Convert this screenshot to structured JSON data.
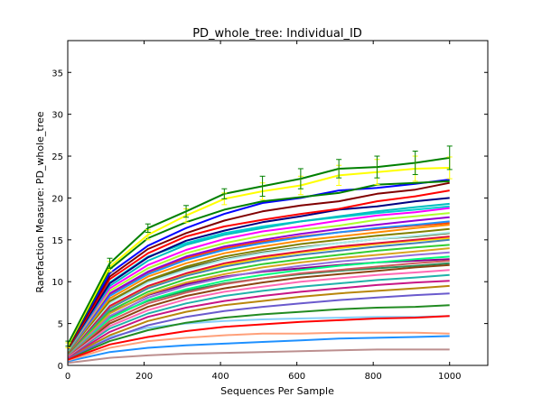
{
  "chart_data": {
    "type": "line",
    "title": "PD_whole_tree: Individual_ID",
    "xlabel": "Sequences Per Sample",
    "ylabel": "Rarefaction Measure: PD_whole_tree",
    "xlim": [
      0,
      1100
    ],
    "ylim": [
      0,
      38.8
    ],
    "xticks": [
      "0",
      "200",
      "400",
      "600",
      "800",
      "1000"
    ],
    "yticks": [
      "0",
      "5",
      "10",
      "15",
      "20",
      "25",
      "30",
      "35"
    ],
    "grid": false,
    "legend": "none",
    "x": [
      1,
      110,
      210,
      310,
      410,
      510,
      610,
      710,
      810,
      910,
      1000
    ],
    "series": [
      {
        "color": "#008000",
        "values": [
          2.6,
          12.2,
          16.4,
          18.4,
          20.5,
          21.4,
          22.3,
          23.5,
          23.7,
          24.2,
          24.8
        ],
        "err": [
          0.3,
          0.6,
          0.5,
          0.7,
          0.6,
          1.2,
          1.2,
          1.1,
          1.3,
          1.4,
          1.4
        ]
      },
      {
        "color": "#ffff00",
        "values": [
          2.4,
          11.8,
          15.6,
          17.9,
          19.9,
          20.8,
          21.5,
          22.7,
          23.1,
          23.5,
          23.6
        ],
        "err": [
          0.3,
          0.6,
          0.6,
          0.8,
          0.7,
          1.0,
          1.1,
          1.2,
          1.5,
          1.5,
          1.3
        ]
      },
      {
        "color": "#008000",
        "values": [
          2.3,
          11.5,
          15.2,
          17.1,
          18.6,
          19.6,
          20.1,
          20.6,
          21.6,
          21.8,
          22.0
        ]
      },
      {
        "color": "#0000ff",
        "values": [
          2.3,
          11.0,
          14.3,
          16.4,
          18.1,
          19.4,
          20.0,
          20.9,
          21.2,
          21.7,
          22.2
        ]
      },
      {
        "color": "#800000",
        "values": [
          2.1,
          10.6,
          13.9,
          15.8,
          17.3,
          18.4,
          19.1,
          19.6,
          20.5,
          21.0,
          21.8
        ]
      },
      {
        "color": "#ff0000",
        "values": [
          2.0,
          10.3,
          13.4,
          15.4,
          16.6,
          17.4,
          18.1,
          18.7,
          19.6,
          20.2,
          20.9
        ]
      },
      {
        "color": "#000080",
        "values": [
          2.0,
          9.8,
          12.9,
          14.9,
          16.1,
          17.1,
          17.8,
          18.6,
          19.0,
          19.6,
          20.0
        ]
      },
      {
        "color": "#00bfbf",
        "values": [
          1.9,
          9.5,
          12.5,
          14.4,
          15.6,
          16.4,
          17.2,
          17.8,
          18.4,
          18.9,
          19.3
        ]
      },
      {
        "color": "#ff00ff",
        "values": [
          1.9,
          9.2,
          12.0,
          13.8,
          15.1,
          16.0,
          16.6,
          17.3,
          17.9,
          18.3,
          18.8
        ]
      },
      {
        "color": "#adff2f",
        "values": [
          1.8,
          8.9,
          11.6,
          13.4,
          14.6,
          15.5,
          16.2,
          16.7,
          17.4,
          17.8,
          18.2
        ]
      },
      {
        "color": "#9400d3",
        "values": [
          1.8,
          8.6,
          11.2,
          13.0,
          14.2,
          15.0,
          15.7,
          16.3,
          16.8,
          17.3,
          17.7
        ]
      },
      {
        "color": "#1e90ff",
        "values": [
          1.7,
          8.3,
          10.9,
          12.6,
          13.8,
          14.6,
          15.3,
          15.9,
          16.4,
          16.8,
          17.2
        ]
      },
      {
        "color": "#ff8c00",
        "values": [
          1.7,
          8.0,
          10.6,
          12.2,
          13.4,
          14.2,
          14.9,
          15.4,
          15.9,
          16.4,
          16.8
        ]
      },
      {
        "color": "#808000",
        "values": [
          1.6,
          7.7,
          10.2,
          11.8,
          13.0,
          13.8,
          14.5,
          15.0,
          15.5,
          15.9,
          16.3
        ]
      },
      {
        "color": "#afeeee",
        "values": [
          1.6,
          7.4,
          9.9,
          11.4,
          12.6,
          13.4,
          14.0,
          14.6,
          15.1,
          15.5,
          15.9
        ]
      },
      {
        "color": "#dc143c",
        "values": [
          1.5,
          7.1,
          9.5,
          11.0,
          12.2,
          13.0,
          13.6,
          14.2,
          14.6,
          15.0,
          15.4
        ]
      },
      {
        "color": "#4682b4",
        "values": [
          1.5,
          6.8,
          9.2,
          10.7,
          11.8,
          12.6,
          13.2,
          13.7,
          14.2,
          14.6,
          15.0
        ]
      },
      {
        "color": "#32cd32",
        "values": [
          1.4,
          6.5,
          8.8,
          10.3,
          11.3,
          12.1,
          12.7,
          13.2,
          13.7,
          14.1,
          14.4
        ]
      },
      {
        "color": "#daa520",
        "values": [
          1.4,
          6.2,
          8.5,
          9.9,
          10.9,
          11.7,
          12.3,
          12.8,
          13.2,
          13.6,
          14.0
        ]
      },
      {
        "color": "#9370db",
        "values": [
          1.3,
          5.9,
          8.1,
          9.5,
          10.5,
          11.3,
          11.9,
          12.4,
          12.8,
          13.2,
          13.5
        ]
      },
      {
        "color": "#00ff7f",
        "values": [
          1.3,
          5.6,
          7.8,
          9.1,
          10.1,
          10.8,
          11.4,
          11.9,
          12.3,
          12.7,
          13.0
        ]
      },
      {
        "color": "#cd5c5c",
        "values": [
          1.2,
          5.3,
          7.4,
          8.7,
          9.7,
          10.4,
          11.0,
          11.4,
          11.8,
          12.2,
          12.5
        ]
      },
      {
        "color": "#8b4513",
        "values": [
          1.2,
          5.0,
          7.0,
          8.3,
          9.2,
          9.9,
          10.5,
          10.9,
          11.3,
          11.7,
          12.0
        ]
      },
      {
        "color": "#ff69b4",
        "values": [
          1.1,
          4.7,
          6.6,
          7.9,
          8.8,
          9.4,
          10.0,
          10.4,
          10.8,
          11.1,
          11.4
        ]
      },
      {
        "color": "#20b2aa",
        "values": [
          1.1,
          4.4,
          6.2,
          7.4,
          8.3,
          8.9,
          9.4,
          9.8,
          10.2,
          10.5,
          10.8
        ]
      },
      {
        "color": "#c71585",
        "values": [
          1.0,
          4.0,
          5.8,
          6.9,
          7.7,
          8.3,
          8.8,
          9.2,
          9.6,
          9.9,
          10.1
        ]
      },
      {
        "color": "#b8860b",
        "values": [
          1.0,
          3.6,
          5.3,
          6.4,
          7.2,
          7.7,
          8.2,
          8.6,
          8.9,
          9.2,
          9.5
        ]
      },
      {
        "color": "#6a5acd",
        "values": [
          0.9,
          3.2,
          4.8,
          5.8,
          6.5,
          7.0,
          7.4,
          7.8,
          8.1,
          8.4,
          8.6
        ]
      },
      {
        "color": "#ff0000",
        "values": [
          0.7,
          2.5,
          3.4,
          4.1,
          4.6,
          4.9,
          5.2,
          5.4,
          5.6,
          5.7,
          5.9
        ]
      },
      {
        "color": "#228b22",
        "values": [
          0.8,
          2.9,
          4.2,
          5.1,
          5.7,
          6.1,
          6.4,
          6.7,
          6.9,
          7.0,
          7.2
        ]
      },
      {
        "color": "#ffa07a",
        "values": [
          0.6,
          2.1,
          2.9,
          3.3,
          3.6,
          3.8,
          3.8,
          3.9,
          3.9,
          3.9,
          3.8
        ]
      },
      {
        "color": "#1e90ff",
        "values": [
          0.5,
          1.6,
          2.1,
          2.4,
          2.6,
          2.8,
          3.0,
          3.2,
          3.3,
          3.4,
          3.5
        ]
      },
      {
        "color": "#bc8f8f",
        "values": [
          0.3,
          0.9,
          1.2,
          1.4,
          1.5,
          1.6,
          1.7,
          1.8,
          1.9,
          1.9,
          1.9
        ]
      },
      {
        "color": "#87cefa",
        "values": [
          0.9,
          3.4,
          4.5,
          5.0,
          5.3,
          5.5,
          5.6,
          5.7,
          5.8,
          5.8,
          5.9
        ]
      },
      {
        "color": "#556b2f",
        "values": [
          1.6,
          7.5,
          10.1,
          11.6,
          12.7,
          13.5,
          14.1,
          14.6,
          15.1,
          15.4,
          15.8
        ]
      },
      {
        "color": "#ff4500",
        "values": [
          1.8,
          8.4,
          11.1,
          12.8,
          14.0,
          14.8,
          15.4,
          15.9,
          16.3,
          16.7,
          17.0
        ]
      },
      {
        "color": "#00ced1",
        "values": [
          2.0,
          9.9,
          13.0,
          14.6,
          15.8,
          16.6,
          17.2,
          17.7,
          18.2,
          18.6,
          19.0
        ]
      },
      {
        "color": "#8b008b",
        "values": [
          1.4,
          6.3,
          8.4,
          9.7,
          10.6,
          11.2,
          11.6,
          12.0,
          12.3,
          12.5,
          12.7
        ]
      },
      {
        "color": "#ffd700",
        "values": [
          1.5,
          6.9,
          9.3,
          10.9,
          12.0,
          12.8,
          13.5,
          14.0,
          14.5,
          14.9,
          15.2
        ]
      },
      {
        "color": "#2e8b57",
        "values": [
          1.3,
          5.8,
          7.7,
          8.9,
          9.8,
          10.4,
          10.9,
          11.3,
          11.6,
          11.9,
          12.2
        ]
      }
    ]
  }
}
